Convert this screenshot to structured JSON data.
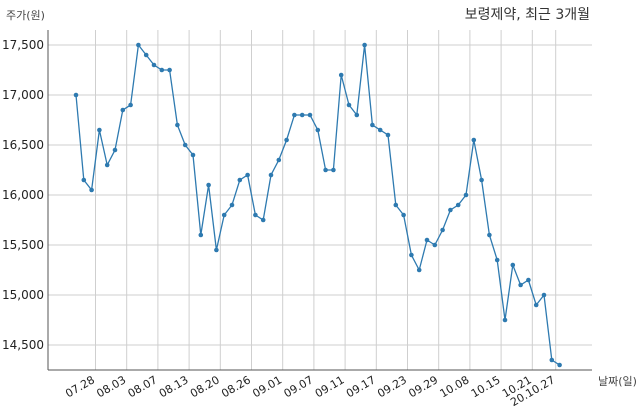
{
  "chart_data": {
    "type": "line",
    "title": "보령제약, 최근 3개월",
    "ylabel": "주가(원)",
    "xlabel": "날짜(일)",
    "ylim": [
      14250,
      17650
    ],
    "y_ticks": [
      14500,
      15000,
      15500,
      16000,
      16500,
      17000,
      17500
    ],
    "y_tick_labels": [
      "14,500",
      "15,000",
      "15,500",
      "16,000",
      "16,500",
      "17,000",
      "17,500"
    ],
    "x_ticks": [
      {
        "label": "07.28",
        "index": 2.5
      },
      {
        "label": "08.03",
        "index": 6.5
      },
      {
        "label": "08.07",
        "index": 10.5
      },
      {
        "label": "08.13",
        "index": 14.5
      },
      {
        "label": "08.20",
        "index": 18.5
      },
      {
        "label": "08.26",
        "index": 22.5
      },
      {
        "label": "09.01",
        "index": 26.5
      },
      {
        "label": "09.07",
        "index": 30.5
      },
      {
        "label": "09.11",
        "index": 34.5
      },
      {
        "label": "09.17",
        "index": 38.5
      },
      {
        "label": "09.23",
        "index": 42.5
      },
      {
        "label": "09.29",
        "index": 46.5
      },
      {
        "label": "10.08",
        "index": 50.5
      },
      {
        "label": "10.15",
        "index": 54.5
      },
      {
        "label": "10.21",
        "index": 58.5
      },
      {
        "label": "20.10.27",
        "index": 61.5
      }
    ],
    "grid": true,
    "series": [
      {
        "values": [
          17000,
          16150,
          16050,
          16650,
          16300,
          16450,
          16850,
          16900,
          17500,
          17400,
          17300,
          17250,
          17250,
          16700,
          16500,
          16400,
          15600,
          16100,
          15450,
          15800,
          15900,
          16150,
          16200,
          15800,
          15750,
          16200,
          16350,
          16550,
          16800,
          16800,
          16800,
          16650,
          16250,
          16250,
          17200,
          16900,
          16800,
          17500,
          16700,
          16650,
          16600,
          15900,
          15800,
          15400,
          15250,
          15550,
          15500,
          15650,
          15850,
          15900,
          16000,
          16550,
          16150,
          15600,
          15350,
          14750,
          15300,
          15100,
          15150,
          14900,
          15000,
          14350,
          14300
        ],
        "color": "#2e7ab0"
      }
    ]
  }
}
